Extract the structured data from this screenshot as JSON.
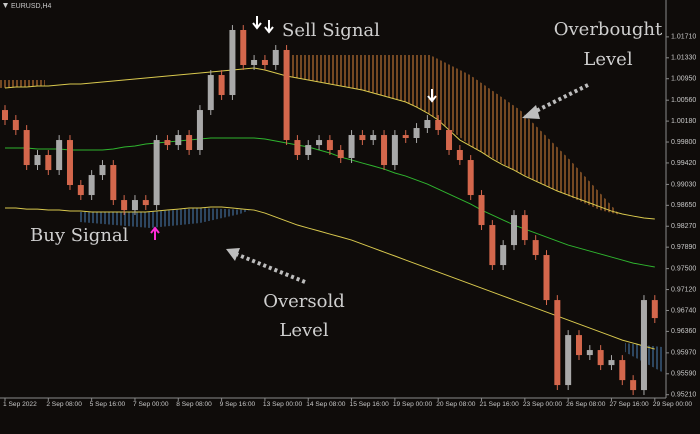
{
  "chart_data": {
    "type": "candlestick",
    "title": "EURUSD,H4",
    "categories": [
      "1 Sep 2022",
      null,
      null,
      null,
      "2 Sep 08:00",
      null,
      null,
      null,
      "5 Sep 16:00",
      null,
      null,
      null,
      "7 Sep 00:00",
      null,
      null,
      null,
      "8 Sep 08:00",
      null,
      null,
      null,
      "9 Sep 16:00",
      null,
      null,
      null,
      "13 Sep 00:00",
      null,
      null,
      null,
      "14 Sep 08:00",
      null,
      null,
      null,
      "15 Sep 16:00",
      null,
      null,
      null,
      "19 Sep 00:00",
      null,
      null,
      null,
      "20 Sep 08:00",
      null,
      null,
      null,
      "21 Sep 16:00",
      null,
      null,
      null,
      "23 Sep 00:00",
      null,
      null,
      null,
      "26 Sep 08:00",
      null,
      null,
      null,
      "27 Sep 16:00",
      null,
      null,
      null,
      "29 Sep 00:00"
    ],
    "open": [
      1.00381,
      1.002,
      1.00018,
      0.99382,
      0.99564,
      0.99291,
      0.99836,
      0.99019,
      0.98837,
      0.992,
      0.99382,
      0.98746,
      0.98564,
      0.98746,
      0.98655,
      0.99836,
      0.99745,
      0.99927,
      0.99655,
      1.00381,
      1.01017,
      1.00654,
      1.01835,
      1.01199,
      1.0129,
      1.01199,
      1.01472,
      0.99836,
      0.99564,
      0.99745,
      0.99836,
      0.99655,
      0.99509,
      0.99927,
      0.99836,
      0.99927,
      0.99382,
      0.99927,
      0.99873,
      1.00054,
      1.002,
      1.00018,
      0.99655,
      0.99473,
      0.98837,
      0.98292,
      0.97565,
      0.97928,
      0.98473,
      0.98019,
      0.97747,
      0.96929,
      0.95385,
      0.96293,
      0.9593,
      0.96021,
      0.95748,
      0.95839,
      0.95475,
      0.95294,
      0.96929
    ],
    "high": [
      1.00471,
      1.0029,
      1.00108,
      0.99654,
      0.99654,
      0.99926,
      0.99926,
      0.99109,
      0.9929,
      0.99472,
      0.99472,
      0.98836,
      0.98836,
      0.98836,
      0.99926,
      0.99926,
      1.00017,
      1.00017,
      1.00471,
      1.01107,
      1.01107,
      1.01925,
      1.01925,
      1.0138,
      1.0138,
      1.01562,
      1.01562,
      0.99926,
      0.99835,
      0.99926,
      0.99926,
      0.99745,
      1.00017,
      1.00017,
      1.00017,
      1.00017,
      1.00017,
      1.00017,
      1.00144,
      1.0029,
      1.0029,
      1.00108,
      0.99745,
      0.99563,
      0.98927,
      0.98382,
      0.98018,
      0.98563,
      0.98563,
      0.98109,
      0.97837,
      0.97019,
      0.96383,
      0.96383,
      0.96111,
      0.96111,
      0.95929,
      0.95929,
      0.95565,
      0.97019,
      0.97019
    ],
    "low": [
      1.0011,
      0.99928,
      0.99292,
      0.99292,
      0.99201,
      0.99201,
      0.98929,
      0.98747,
      0.98747,
      0.9911,
      0.98656,
      0.98474,
      0.98474,
      0.98565,
      0.98565,
      0.99655,
      0.99655,
      0.99565,
      0.99565,
      1.00291,
      1.00564,
      1.00564,
      1.01109,
      1.01109,
      1.01109,
      1.01109,
      0.99746,
      0.99474,
      0.99474,
      0.99655,
      0.99565,
      0.99419,
      0.99419,
      0.99746,
      0.99746,
      0.99292,
      0.99292,
      0.99783,
      0.99783,
      0.99964,
      0.99928,
      0.99565,
      0.99383,
      0.98747,
      0.98202,
      0.97475,
      0.97475,
      0.97838,
      0.97929,
      0.97657,
      0.96839,
      0.95295,
      0.95295,
      0.9584,
      0.9584,
      0.95658,
      0.95658,
      0.95385,
      0.95204,
      0.95204,
      0.96512
    ],
    "close": [
      1.002,
      1.00018,
      0.99382,
      0.99564,
      0.99291,
      0.99836,
      0.99019,
      0.98837,
      0.992,
      0.99382,
      0.98746,
      0.98564,
      0.98746,
      0.98655,
      0.99836,
      0.99745,
      0.99927,
      0.99655,
      1.00381,
      1.01017,
      1.00654,
      1.01835,
      1.01199,
      1.0129,
      1.01199,
      1.01472,
      0.99836,
      0.99564,
      0.99745,
      0.99836,
      0.99655,
      0.99509,
      0.99927,
      0.99836,
      0.99927,
      0.99382,
      0.99927,
      0.99873,
      1.00054,
      1.002,
      1.00018,
      0.99655,
      0.99473,
      0.98837,
      0.98292,
      0.97565,
      0.97928,
      0.98473,
      0.98019,
      0.97747,
      0.96929,
      0.95385,
      0.96293,
      0.9593,
      0.96021,
      0.95748,
      0.95839,
      0.95475,
      0.95294,
      0.96929,
      0.96602
    ],
    "up_color": "#a9a9a9",
    "down_color": "#d4674c",
    "lines": [
      {
        "color": "#d9c94e",
        "values": [
          1.00781,
          1.00799,
          1.00799,
          1.00817,
          1.00817,
          1.00836,
          1.00854,
          1.00854,
          1.00872,
          1.0089,
          1.00908,
          1.00926,
          1.00945,
          1.00963,
          1.00981,
          1.00999,
          1.01017,
          1.01035,
          1.01054,
          1.01072,
          1.0109,
          1.01108,
          1.01126,
          1.01144,
          1.01108,
          1.01054,
          1.00999,
          1.00963,
          1.00926,
          1.0089,
          1.00854,
          1.00817,
          1.00781,
          1.00745,
          1.0069,
          1.00636,
          1.00581,
          1.00527,
          1.00436,
          1.00327,
          1.002,
          1.00018,
          0.99836,
          0.99727,
          0.99618,
          0.99491,
          0.99382,
          0.99291,
          0.99182,
          0.99091,
          0.99,
          0.9891,
          0.98837,
          0.98764,
          0.98692,
          0.98619,
          0.98546,
          0.98492,
          0.98455,
          0.98419,
          0.98401
        ]
      },
      {
        "color": "#2fb52f",
        "values": [
          0.99691,
          0.99691,
          0.99691,
          0.99673,
          0.99673,
          0.99673,
          0.99655,
          0.99655,
          0.99655,
          0.99655,
          0.99673,
          0.99709,
          0.99727,
          0.99764,
          0.99782,
          0.998,
          0.99818,
          0.99836,
          0.99854,
          0.99873,
          0.99873,
          0.99873,
          0.99873,
          0.99873,
          0.99854,
          0.99818,
          0.99782,
          0.99745,
          0.99709,
          0.99655,
          0.996,
          0.99527,
          0.99473,
          0.99418,
          0.99364,
          0.99309,
          0.99237,
          0.99182,
          0.99109,
          0.99037,
          0.98946,
          0.98855,
          0.98764,
          0.98673,
          0.98564,
          0.98473,
          0.98383,
          0.98292,
          0.98219,
          0.98146,
          0.98074,
          0.98001,
          0.97928,
          0.97874,
          0.97819,
          0.97765,
          0.9771,
          0.97656,
          0.97601,
          0.97565,
          0.97529
        ]
      },
      {
        "color": "#d9c94e",
        "values": [
          0.98601,
          0.98601,
          0.98582,
          0.98582,
          0.98564,
          0.98564,
          0.98546,
          0.98546,
          0.98528,
          0.98528,
          0.98528,
          0.98528,
          0.98528,
          0.98528,
          0.98546,
          0.98564,
          0.98582,
          0.98601,
          0.98601,
          0.98619,
          0.98619,
          0.98601,
          0.98582,
          0.98564,
          0.9851,
          0.98437,
          0.98364,
          0.98292,
          0.98237,
          0.98183,
          0.98128,
          0.98074,
          0.98019,
          0.97946,
          0.97874,
          0.97801,
          0.97729,
          0.97656,
          0.97583,
          0.9751,
          0.97438,
          0.97365,
          0.97292,
          0.9722,
          0.97147,
          0.97074,
          0.97002,
          0.96929,
          0.96856,
          0.96784,
          0.96711,
          0.96638,
          0.96566,
          0.96493,
          0.9642,
          0.96348,
          0.96275,
          0.96202,
          0.96148,
          0.96093,
          0.96039
        ]
      }
    ],
    "ylim": [
      0.9515,
      1.0238
    ],
    "yticks": [
      {
        "value": 1.0171,
        "label": "1.01710"
      },
      {
        "value": 1.0133,
        "label": "1.01330"
      },
      {
        "value": 1.0095,
        "label": "1.00950"
      },
      {
        "value": 1.0056,
        "label": "1.00560"
      },
      {
        "value": 1.0018,
        "label": "1.00180"
      },
      {
        "value": 0.998,
        "label": "0.99800"
      },
      {
        "value": 0.9942,
        "label": "0.99420"
      },
      {
        "value": 0.9903,
        "label": "0.99030"
      },
      {
        "value": 0.9865,
        "label": "0.98650"
      },
      {
        "value": 0.9827,
        "label": "0.98270"
      },
      {
        "value": 0.9789,
        "label": "0.97890"
      },
      {
        "value": 0.975,
        "label": "0.97500"
      },
      {
        "value": 0.9712,
        "label": "0.97120"
      },
      {
        "value": 0.9674,
        "label": "0.96740"
      },
      {
        "value": 0.9636,
        "label": "0.96360"
      },
      {
        "value": 0.9597,
        "label": "0.95970"
      },
      {
        "value": 0.9559,
        "label": "0.95590"
      },
      {
        "value": 0.9521,
        "label": "0.95210"
      }
    ],
    "annotations": [
      "Sell Signal",
      "Overbought",
      "Level",
      "Buy Signal",
      "Oversold",
      "Level"
    ]
  }
}
